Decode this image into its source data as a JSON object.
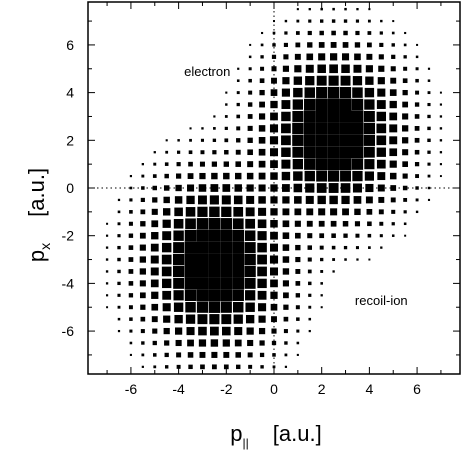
{
  "chart_data": {
    "type": "heatmap",
    "title": "",
    "xlabel": "p",
    "xlabel_subscript": "||",
    "xlabel_unit": "[a.u.]",
    "ylabel": "p",
    "ylabel_subscript": "x",
    "ylabel_unit": "[a.u.]",
    "xlim": [
      -7.8,
      7.8
    ],
    "ylim": [
      -7.8,
      7.8
    ],
    "xticks": [
      -6,
      -4,
      -2,
      0,
      2,
      4,
      6
    ],
    "yticks": [
      -6,
      -4,
      -2,
      0,
      2,
      4,
      6
    ],
    "reference_lines": {
      "x": 0,
      "y": 0,
      "style": "dotted"
    },
    "marker": "square, area proportional to density",
    "annotations": [
      {
        "text": "electron",
        "x": -2.8,
        "y": 4.7
      },
      {
        "text": "recoil-ion",
        "x": 4.5,
        "y": -4.9
      }
    ],
    "clusters": [
      {
        "label": "electron",
        "center": [
          2.5,
          2.3
        ],
        "sigma": [
          1.7,
          2.0
        ],
        "peak": 1.0
      },
      {
        "label": "recoil-ion",
        "center": [
          -2.5,
          -3.2
        ],
        "sigma": [
          1.7,
          2.1
        ],
        "peak": 1.0
      }
    ],
    "grid_step": 0.5,
    "grid": false
  }
}
